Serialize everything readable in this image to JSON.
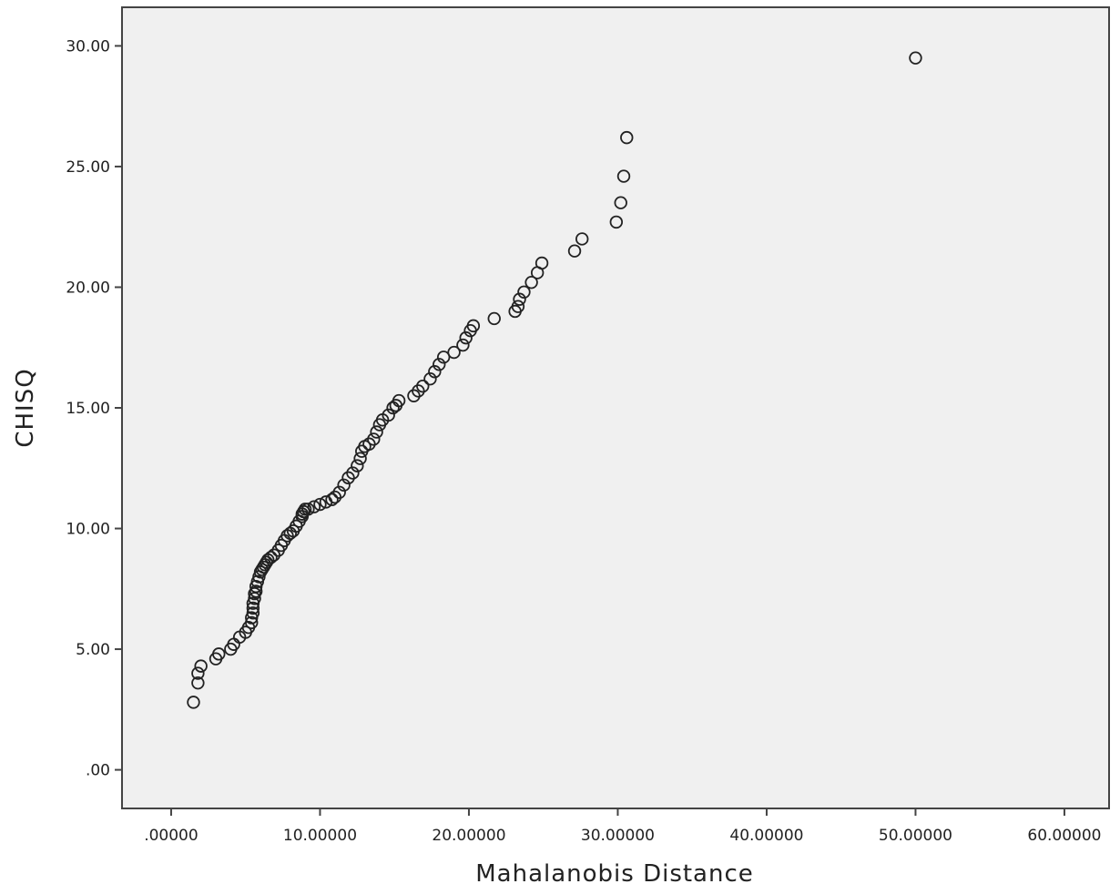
{
  "chart_data": {
    "type": "scatter",
    "title": "",
    "xlabel": "Mahalanobis Distance",
    "ylabel": "CHISQ",
    "xlim": [
      -3.3,
      63.0
    ],
    "ylim": [
      -1.6,
      31.6
    ],
    "xticks": [
      0,
      10,
      20,
      30,
      40,
      50,
      60
    ],
    "xtick_labels": [
      ".00000",
      "10.00000",
      "20.00000",
      "30.00000",
      "40.00000",
      "50.00000",
      "60.00000"
    ],
    "yticks": [
      0,
      5,
      10,
      15,
      20,
      25,
      30
    ],
    "ytick_labels": [
      ".00",
      "5.00",
      "10.00",
      "15.00",
      "20.00",
      "25.00",
      "30.00"
    ],
    "grid": false,
    "colors": {
      "plot_background": "#f0f0f0",
      "marker": "#222222",
      "axis": "#444444"
    },
    "series": [
      {
        "marker": "open-circle",
        "x": [
          1.5,
          1.8,
          1.8,
          2.0,
          3.0,
          3.2,
          4.0,
          4.2,
          4.6,
          5.0,
          5.2,
          5.4,
          5.4,
          5.5,
          5.5,
          5.5,
          5.6,
          5.6,
          5.7,
          5.7,
          5.8,
          5.9,
          6.0,
          6.1,
          6.2,
          6.3,
          6.4,
          6.5,
          6.7,
          6.9,
          7.2,
          7.4,
          7.6,
          7.8,
          8.0,
          8.2,
          8.4,
          8.6,
          8.8,
          8.8,
          8.9,
          9.0,
          9.2,
          9.6,
          10.0,
          10.4,
          10.8,
          11.0,
          11.3,
          11.6,
          11.9,
          12.2,
          12.5,
          12.7,
          12.8,
          13.0,
          13.3,
          13.6,
          13.8,
          14.0,
          14.2,
          14.6,
          14.9,
          15.1,
          15.3,
          16.3,
          16.6,
          16.9,
          17.4,
          17.7,
          18.0,
          18.3,
          19.0,
          19.6,
          19.8,
          20.1,
          20.3,
          21.7,
          23.1,
          23.3,
          23.4,
          23.7,
          24.2,
          24.6,
          24.9,
          27.1,
          27.6,
          29.9,
          30.2,
          30.4,
          30.6,
          50.0
        ],
        "y": [
          2.8,
          3.6,
          4.0,
          4.3,
          4.6,
          4.8,
          5.0,
          5.2,
          5.5,
          5.7,
          5.9,
          6.1,
          6.3,
          6.5,
          6.7,
          6.9,
          7.1,
          7.3,
          7.4,
          7.6,
          7.8,
          8.0,
          8.2,
          8.3,
          8.4,
          8.5,
          8.6,
          8.7,
          8.8,
          8.9,
          9.1,
          9.3,
          9.5,
          9.7,
          9.8,
          9.9,
          10.1,
          10.3,
          10.5,
          10.6,
          10.7,
          10.8,
          10.8,
          10.9,
          11.0,
          11.1,
          11.2,
          11.3,
          11.5,
          11.8,
          12.1,
          12.3,
          12.6,
          12.9,
          13.2,
          13.4,
          13.5,
          13.7,
          14.0,
          14.3,
          14.5,
          14.7,
          15.0,
          15.1,
          15.3,
          15.5,
          15.7,
          15.9,
          16.2,
          16.5,
          16.8,
          17.1,
          17.3,
          17.6,
          17.9,
          18.2,
          18.4,
          18.7,
          19.0,
          19.2,
          19.5,
          19.8,
          20.2,
          20.6,
          21.0,
          21.5,
          22.0,
          22.7,
          23.5,
          24.6,
          26.2,
          29.5
        ]
      }
    ]
  }
}
